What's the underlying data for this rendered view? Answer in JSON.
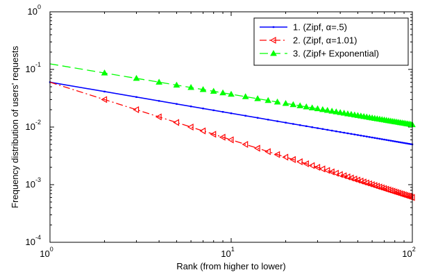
{
  "chart_data": {
    "type": "line",
    "xscale": "log",
    "yscale": "log",
    "xlim": [
      1,
      100
    ],
    "ylim": [
      0.0001,
      1
    ],
    "xlabel": "Rank (from higher to lower)",
    "ylabel": "Frequency distribution of users' requests",
    "xticks": [
      {
        "value": 1,
        "base": "10",
        "exp": "0"
      },
      {
        "value": 10,
        "base": "10",
        "exp": "1"
      },
      {
        "value": 100,
        "base": "10",
        "exp": "2"
      }
    ],
    "yticks": [
      {
        "value": 0.0001,
        "base": "10",
        "exp": "-4"
      },
      {
        "value": 0.001,
        "base": "10",
        "exp": "-3"
      },
      {
        "value": 0.01,
        "base": "10",
        "exp": "-2"
      },
      {
        "value": 0.1,
        "base": "10",
        "exp": "-1"
      },
      {
        "value": 1,
        "base": "10",
        "exp": "0"
      }
    ],
    "legend_position": "top-right",
    "series": [
      {
        "name": "1. (Zipf, α=.5)",
        "color": "#0000ff",
        "dash": "solid",
        "marker": "point",
        "x_range": [
          1,
          100
        ],
        "y_at_x1": 0.06,
        "y_at_x100": 0.005
      },
      {
        "name": "2. (Zipf, α=1.01)",
        "color": "#ff0000",
        "dash": "dash-dot",
        "marker": "triangle-left",
        "x_range": [
          1,
          100
        ],
        "y_at_x1": 0.06,
        "y_at_x100": 0.0006
      },
      {
        "name": "3. (Zipf+ Exponential)",
        "color": "#00ff00",
        "dash": "dashed",
        "marker": "triangle-up",
        "x_range": [
          1,
          100
        ],
        "y_at_x1": 0.125,
        "y_at_x100": 0.011
      }
    ]
  }
}
